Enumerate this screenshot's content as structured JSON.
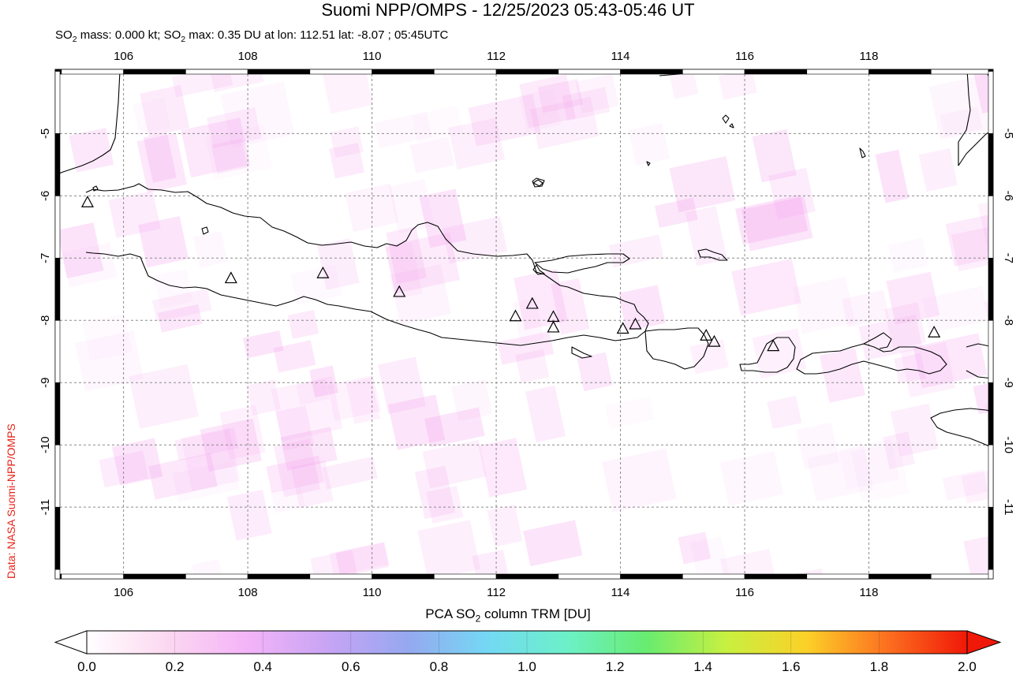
{
  "header": {
    "title": "Suomi NPP/OMPS - 12/25/2023 05:43-05:46 UT",
    "subtitle_prefix": "SO",
    "subtitle_sub": "2",
    "subtitle_mid": " mass: 0.000 kt; SO",
    "subtitle_rest": " max: 0.35 DU at lon: 112.51 lat: -8.07 ; 05:45UTC"
  },
  "credit": "Data: NASA Suomi-NPP/OMPS",
  "map": {
    "lon_range": [
      104.9,
      120.0
    ],
    "lat_range": [
      -12.15,
      -3.97
    ],
    "lon_ticks": [
      "106",
      "108",
      "110",
      "112",
      "114",
      "116",
      "118"
    ],
    "lat_ticks": [
      "-5",
      "-6",
      "-7",
      "-8",
      "-9",
      "-10",
      "-11"
    ],
    "grid": true,
    "coastline_color": "#000000",
    "volcanoes": [
      {
        "lon": 105.42,
        "lat": -6.1
      },
      {
        "lon": 107.73,
        "lat": -7.32
      },
      {
        "lon": 109.21,
        "lat": -7.24
      },
      {
        "lon": 110.44,
        "lat": -7.54
      },
      {
        "lon": 112.31,
        "lat": -7.93
      },
      {
        "lon": 112.58,
        "lat": -7.73
      },
      {
        "lon": 112.92,
        "lat": -7.94
      },
      {
        "lon": 112.92,
        "lat": -8.11
      },
      {
        "lon": 114.04,
        "lat": -8.13
      },
      {
        "lon": 114.24,
        "lat": -8.06
      },
      {
        "lon": 115.38,
        "lat": -8.24
      },
      {
        "lon": 115.51,
        "lat": -8.34
      },
      {
        "lon": 116.46,
        "lat": -8.41
      },
      {
        "lon": 119.05,
        "lat": -8.19
      }
    ]
  },
  "colorbar": {
    "label_prefix": "PCA SO",
    "label_sub": "2",
    "label_suffix": " column TRM [DU]",
    "ticks": [
      "0.0",
      "0.2",
      "0.4",
      "0.6",
      "0.8",
      "1.0",
      "1.2",
      "1.4",
      "1.6",
      "1.8",
      "2.0"
    ],
    "range": [
      0.0,
      2.0
    ],
    "colors": [
      "#ffffff",
      "#fcd8f0",
      "#f4b4f8",
      "#c8a4f4",
      "#96a8f0",
      "#74d8f4",
      "#6cf0c8",
      "#68ec70",
      "#c8f040",
      "#fcd028",
      "#fc7020",
      "#f01808"
    ]
  }
}
